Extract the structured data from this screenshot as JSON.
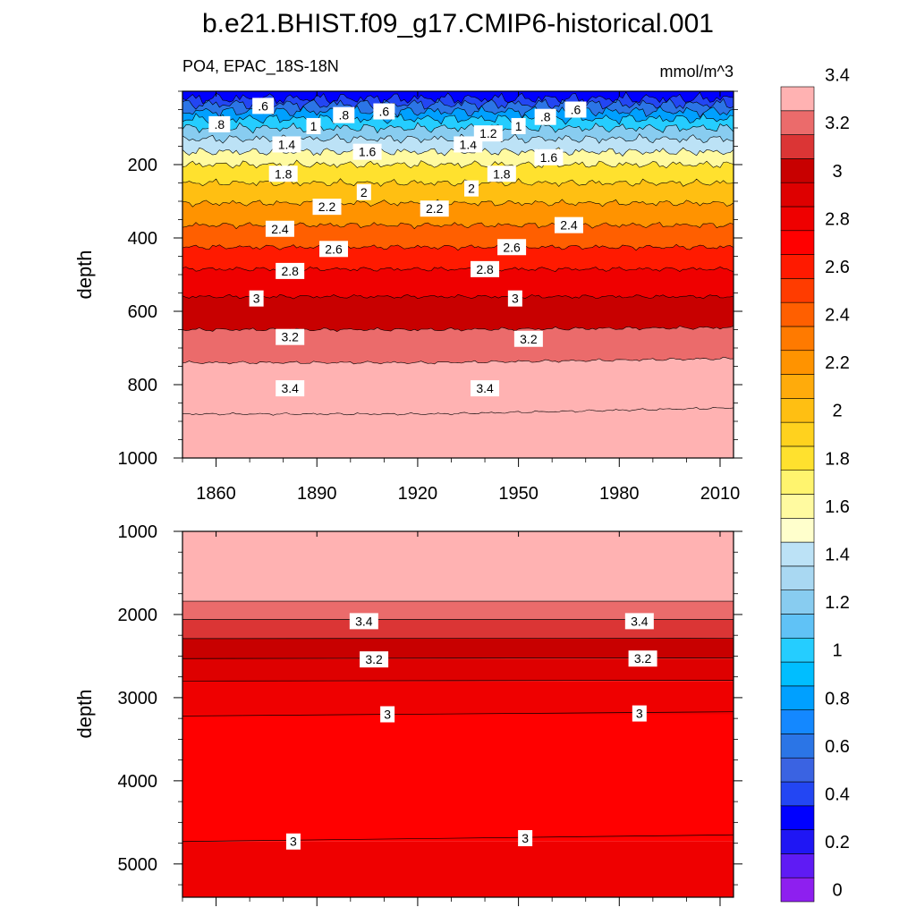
{
  "chart_data": {
    "type": "contour",
    "title": "b.e21.BHIST.f09_g17.CMIP6-historical.001",
    "variable_label": "PO4, EPAC_18S-18N",
    "units": "mmol/m^3",
    "ylabel": "depth",
    "xlim": [
      1850,
      2014
    ],
    "x_ticks": [
      1860,
      1890,
      1920,
      1950,
      1980,
      2010
    ],
    "x_tick_labels": [
      "1860",
      "1890",
      "1920",
      "1950",
      "1980",
      "2010"
    ],
    "panels": [
      {
        "name": "upper",
        "ylim": [
          0,
          1000
        ],
        "y_ticks": [
          200,
          400,
          600,
          800,
          1000
        ],
        "y_tick_labels": [
          "200",
          "400",
          "600",
          "800",
          "1000"
        ],
        "contour_depths": [
          {
            "level": 0.4,
            "depth": 20
          },
          {
            "level": 0.6,
            "depth": 35
          },
          {
            "level": 0.8,
            "depth": 55
          },
          {
            "level": 1.0,
            "depth": 75
          },
          {
            "level": 1.2,
            "depth": 100
          },
          {
            "level": 1.4,
            "depth": 130
          },
          {
            "level": 1.6,
            "depth": 165
          },
          {
            "level": 1.8,
            "depth": 200
          },
          {
            "level": 2.0,
            "depth": 250
          },
          {
            "level": 2.2,
            "depth": 305
          },
          {
            "level": 2.4,
            "depth": 365
          },
          {
            "level": 2.6,
            "depth": 425
          },
          {
            "level": 2.8,
            "depth": 485
          },
          {
            "level": 3.0,
            "depth": 560
          },
          {
            "level": 3.2,
            "depth": 650
          },
          {
            "level": 3.4,
            "depth": 740
          },
          {
            "level": 3.6,
            "depth": 880
          }
        ],
        "labels": [
          {
            "text": ".8",
            "year": 1861,
            "depth": 90
          },
          {
            "text": ".6",
            "year": 1874,
            "depth": 40
          },
          {
            "text": "1",
            "year": 1889,
            "depth": 95
          },
          {
            "text": ".8",
            "year": 1898,
            "depth": 65
          },
          {
            "text": ".6",
            "year": 1910,
            "depth": 55
          },
          {
            "text": "1.4",
            "year": 1881,
            "depth": 145
          },
          {
            "text": "1.6",
            "year": 1905,
            "depth": 165
          },
          {
            "text": "1.4",
            "year": 1935,
            "depth": 145
          },
          {
            "text": "1.2",
            "year": 1941,
            "depth": 115
          },
          {
            "text": "1",
            "year": 1950,
            "depth": 95
          },
          {
            "text": ".8",
            "year": 1958,
            "depth": 70
          },
          {
            "text": ".6",
            "year": 1967,
            "depth": 50
          },
          {
            "text": "1.6",
            "year": 1959,
            "depth": 180
          },
          {
            "text": "1.8",
            "year": 1880,
            "depth": 225
          },
          {
            "text": "1.8",
            "year": 1945,
            "depth": 225
          },
          {
            "text": "2",
            "year": 1904,
            "depth": 275
          },
          {
            "text": "2",
            "year": 1936,
            "depth": 265
          },
          {
            "text": "2.2",
            "year": 1893,
            "depth": 315
          },
          {
            "text": "2.2",
            "year": 1925,
            "depth": 320
          },
          {
            "text": "2.4",
            "year": 1879,
            "depth": 375
          },
          {
            "text": "2.4",
            "year": 1965,
            "depth": 365
          },
          {
            "text": "2.6",
            "year": 1895,
            "depth": 430
          },
          {
            "text": "2.6",
            "year": 1948,
            "depth": 425
          },
          {
            "text": "2.8",
            "year": 1882,
            "depth": 490
          },
          {
            "text": "2.8",
            "year": 1940,
            "depth": 485
          },
          {
            "text": "3",
            "year": 1872,
            "depth": 565
          },
          {
            "text": "3",
            "year": 1949,
            "depth": 565
          },
          {
            "text": "3.2",
            "year": 1882,
            "depth": 670
          },
          {
            "text": "3.2",
            "year": 1953,
            "depth": 675
          },
          {
            "text": "3.4",
            "year": 1882,
            "depth": 810
          },
          {
            "text": "3.4",
            "year": 1940,
            "depth": 810
          }
        ]
      },
      {
        "name": "lower",
        "ylim": [
          1000,
          5400
        ],
        "y_ticks": [
          1000,
          2000,
          3000,
          4000,
          5000
        ],
        "y_tick_labels": [
          "1000",
          "2000",
          "3000",
          "4000",
          "5000"
        ],
        "bands": [
          {
            "from": 1000,
            "to": 1840,
            "color": "#FFB2B2"
          },
          {
            "from": 1840,
            "to": 2060,
            "color": "#EB6B6B"
          },
          {
            "from": 2060,
            "to": 2290,
            "color": "#DB3535"
          },
          {
            "from": 2290,
            "to": 2530,
            "color": "#C80000"
          },
          {
            "from": 2530,
            "to": 2800,
            "color": "#DE0000"
          },
          {
            "from": 2800,
            "to": 3200,
            "color": "#EF0000"
          },
          {
            "from": 3200,
            "to": 4730,
            "color": "#FF0000"
          },
          {
            "from": 4730,
            "to": 5400,
            "color": "#EF0000"
          }
        ],
        "lines": [
          {
            "start": 1840,
            "end": 1840
          },
          {
            "start": 2060,
            "end": 2060
          },
          {
            "start": 2290,
            "end": 2285
          },
          {
            "start": 2530,
            "end": 2520
          },
          {
            "start": 2800,
            "end": 2790
          },
          {
            "start": 3220,
            "end": 3170
          },
          {
            "start": 4730,
            "end": 4650
          }
        ],
        "labels": [
          {
            "text": "3.4",
            "year": 1904,
            "depth": 2080
          },
          {
            "text": "3.4",
            "year": 1986,
            "depth": 2080
          },
          {
            "text": "3.2",
            "year": 1907,
            "depth": 2540
          },
          {
            "text": "3.2",
            "year": 1987,
            "depth": 2530
          },
          {
            "text": "3",
            "year": 1911,
            "depth": 3200
          },
          {
            "text": "3",
            "year": 1986,
            "depth": 3190
          },
          {
            "text": "3",
            "year": 1883,
            "depth": 4730
          },
          {
            "text": "3",
            "year": 1952,
            "depth": 4690
          }
        ]
      }
    ],
    "colorbar": {
      "levels": [
        "0",
        "0.2",
        "0.4",
        "0.6",
        "0.8",
        "1",
        "1.2",
        "1.4",
        "1.6",
        "1.8",
        "2",
        "2.2",
        "2.4",
        "2.6",
        "2.8",
        "3",
        "3.2",
        "3.4"
      ],
      "colors": [
        "#8E1FEF",
        "#5F1BF4",
        "#1F16F4",
        "#0000FF",
        "#2346F3",
        "#3A63E2",
        "#2B75E6",
        "#1488FF",
        "#00A0FF",
        "#00BEFF",
        "#25CDFF",
        "#60C2F6",
        "#88CCF0",
        "#A9D8F2",
        "#BCE2F6",
        "#FFFFCC",
        "#FFFAA0",
        "#FFF46E",
        "#FFE12E",
        "#FFD21E",
        "#FFBF12",
        "#FFAB0B",
        "#FF9300",
        "#FF7A00",
        "#FF5F00",
        "#FF3C00",
        "#FF1A00",
        "#FF0000",
        "#EF0000",
        "#DE0000",
        "#C80000",
        "#DB3535",
        "#EB6B6B",
        "#FFB2B2"
      ]
    }
  }
}
